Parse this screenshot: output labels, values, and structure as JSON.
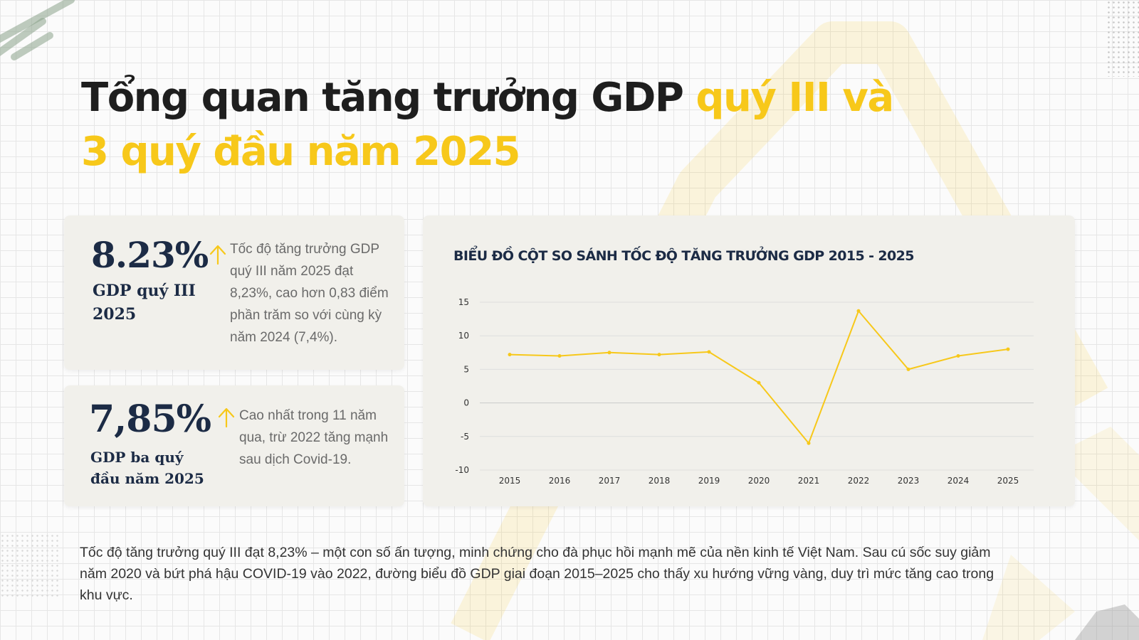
{
  "title": {
    "part1": "Tổng quan tăng trưởng GDP ",
    "part2": "quý III và 3 quý đầu năm 2025"
  },
  "stats": [
    {
      "value": "8.23%",
      "label": "GDP quý III 2025",
      "description": "Tốc độ tăng trưởng GDP quý III năm 2025 đạt 8,23%, cao hơn 0,83 điểm phần trăm so với cùng kỳ năm 2024 (7,4%)."
    },
    {
      "value": "7,85%",
      "label": "GDP ba quý đầu năm 2025",
      "description": "Cao nhất trong 11 năm qua, trừ 2022 tăng mạnh sau dịch Covid-19."
    }
  ],
  "chart_data": {
    "type": "line",
    "title": "BIỂU ĐỒ CỘT SO SÁNH TỐC ĐỘ TĂNG TRƯỞNG GDP 2015 - 2025",
    "xlabel": "",
    "ylabel": "",
    "categories": [
      "2015",
      "2016",
      "2017",
      "2018",
      "2019",
      "2020",
      "2021",
      "2022",
      "2023",
      "2024",
      "2025"
    ],
    "values": [
      7.2,
      7.0,
      7.5,
      7.2,
      7.6,
      3.0,
      -6.0,
      13.7,
      5.0,
      7.0,
      8.0
    ],
    "ylim": [
      -10,
      15
    ],
    "yticks": [
      "15",
      "10",
      "5",
      "0",
      "-5",
      "-10"
    ],
    "grid": true,
    "line_color": "#f7c81a"
  },
  "summary": "Tốc độ tăng trưởng quý III đạt 8,23% – một con số ấn tượng, minh chứng cho đà phục hồi mạnh mẽ của nền kinh tế Việt Nam. Sau cú sốc suy giảm năm 2020 và bứt phá hậu COVID-19 vào 2022, đường biểu đồ GDP giai đoạn 2015–2025 cho thấy xu hướng vững vàng, duy trì mức tăng cao trong khu vực.",
  "colors": {
    "accent": "#f7c81a",
    "navy": "#1c2b45",
    "card_bg": "#f1f0eb"
  }
}
